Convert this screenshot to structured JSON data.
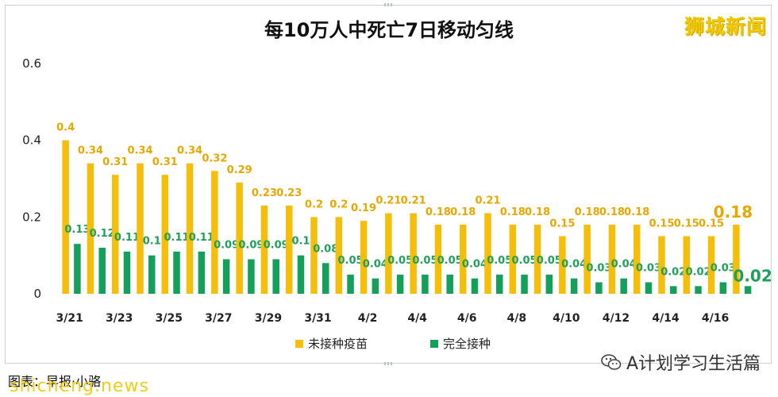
{
  "chart_data": {
    "type": "bar",
    "title": "每10万人中死亡7日移动匀线",
    "categories": [
      "3/21",
      "3/22",
      "3/23",
      "3/24",
      "3/25",
      "3/26",
      "3/27",
      "3/28",
      "3/29",
      "3/30",
      "3/31",
      "4/1",
      "4/2",
      "4/3",
      "4/4",
      "4/5",
      "4/6",
      "4/7",
      "4/8",
      "4/9",
      "4/10",
      "4/11",
      "4/12",
      "4/13",
      "4/14",
      "4/15",
      "4/16",
      "4/17"
    ],
    "x_tick_labels": [
      "3/21",
      "3/23",
      "3/25",
      "3/27",
      "3/29",
      "3/31",
      "4/2",
      "4/4",
      "4/6",
      "4/8",
      "4/10",
      "4/12",
      "4/14",
      "4/16"
    ],
    "y_tick_labels": [
      "0",
      "0.2",
      "0.4",
      "0.6"
    ],
    "ylim": [
      0,
      0.6
    ],
    "series": [
      {
        "name": "未接种疫苗",
        "color": "#f5be0b",
        "values": [
          0.4,
          0.34,
          0.31,
          0.34,
          0.31,
          0.34,
          0.32,
          0.29,
          0.23,
          0.23,
          0.2,
          0.2,
          0.19,
          0.21,
          0.21,
          0.18,
          0.18,
          0.21,
          0.18,
          0.18,
          0.15,
          0.18,
          0.18,
          0.18,
          0.15,
          0.15,
          0.15,
          0.18
        ]
      },
      {
        "name": "完全接种",
        "color": "#14a05a",
        "values": [
          0.13,
          0.12,
          0.11,
          0.1,
          0.11,
          0.11,
          0.09,
          0.09,
          0.09,
          0.1,
          0.08,
          0.05,
          0.04,
          0.05,
          0.05,
          0.05,
          0.04,
          0.05,
          0.05,
          0.05,
          0.04,
          0.03,
          0.04,
          0.03,
          0.02,
          0.02,
          0.03,
          0.02
        ]
      }
    ],
    "legend_position": "bottom",
    "grid": false
  },
  "brand": "狮城新闻",
  "caption": "图表：早报·小骆",
  "wechat_label": "A计划学习生活篇",
  "site_watermark": "shicheng.news"
}
